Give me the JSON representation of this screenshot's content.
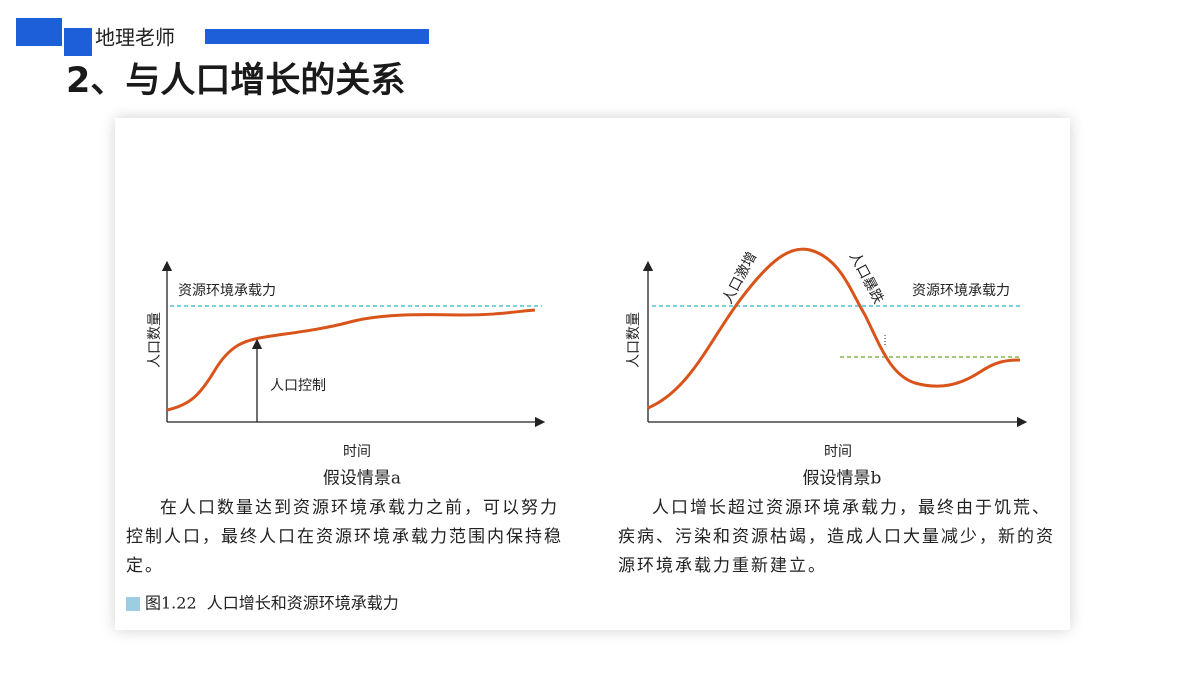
{
  "header": {
    "tag": "地理老师",
    "title": "2、与人口增长的关系"
  },
  "figures": [
    {
      "y_label": "人口数量",
      "x_label": "时间",
      "capacity_label": "资源环境承载力",
      "annotations": [
        "人口控制"
      ],
      "caption": "假设情景a",
      "description": "在人口数量达到资源环境承载力之前，可以努力控制人口，最终人口在资源环境承载力范围内保持稳定。"
    },
    {
      "y_label": "人口数量",
      "x_label": "时间",
      "capacity_label": "资源环境承载力",
      "annotations": [
        "人口激增",
        "人口暴跌"
      ],
      "caption": "假设情景b",
      "description": "人口增长超过资源环境承载力，最终由于饥荒、疾病、污染和资源枯竭，造成人口大量减少，新的资源环境承载力重新建立。"
    }
  ],
  "figure_caption": "图1.22  人口增长和资源环境承载力"
}
